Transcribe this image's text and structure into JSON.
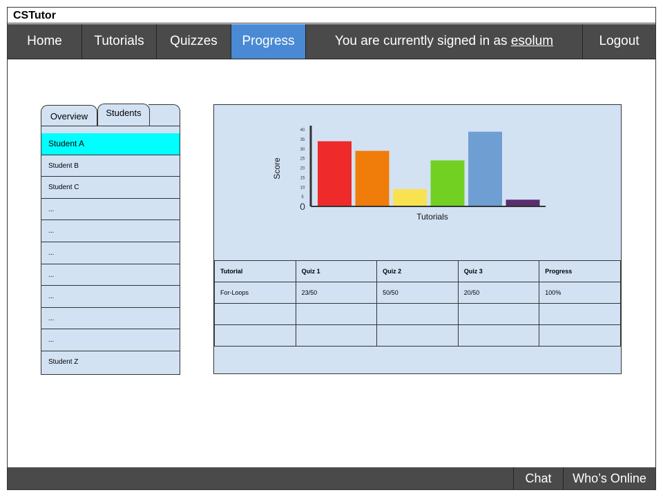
{
  "app": {
    "title": "CSTutor"
  },
  "nav": {
    "home": "Home",
    "tutorials": "Tutorials",
    "quizzes": "Quizzes",
    "progress": "Progress",
    "signin_prefix": "You are currently signed in as ",
    "username": "esolum",
    "logout": "Logout"
  },
  "tabs": {
    "overview": "Overview",
    "students": "Students"
  },
  "students": [
    "Student A",
    "Student B",
    "Student C",
    "...",
    "...",
    "...",
    "...",
    "...",
    "...",
    "...",
    "Student Z"
  ],
  "chart_data": {
    "type": "bar",
    "xlabel": "Tutorials",
    "ylabel": "Score",
    "yticks": [
      "0",
      "5",
      "10",
      "15",
      "20",
      "25",
      "30",
      "35",
      "40"
    ],
    "ylim": [
      0,
      40
    ],
    "values": [
      34,
      29,
      9,
      24,
      39,
      3.5
    ],
    "colors": [
      "#ee2a2a",
      "#f07d0a",
      "#f8e250",
      "#72d023",
      "#6f9fd2",
      "#5a2d6e"
    ]
  },
  "table": {
    "headers": [
      "Tutorial",
      "Quiz 1",
      "Quiz 2",
      "Quiz 3",
      "Progress"
    ],
    "rows": [
      [
        "For-Loops",
        "23/50",
        "50/50",
        "20/50",
        "100%"
      ],
      [
        "",
        "",
        "",
        "",
        ""
      ],
      [
        "",
        "",
        "",
        "",
        ""
      ]
    ]
  },
  "footer": {
    "chat": "Chat",
    "whos_online": "Who’s Online"
  }
}
